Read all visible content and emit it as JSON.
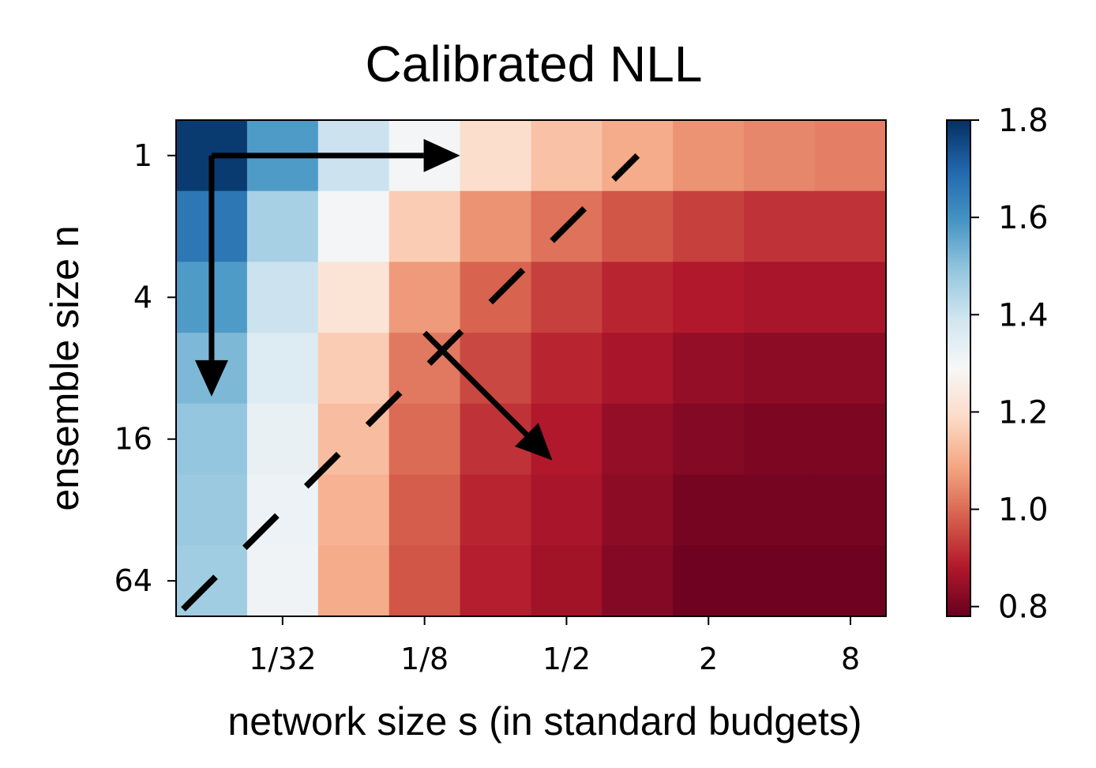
{
  "chart_data": {
    "type": "heatmap",
    "title": "Calibrated NLL",
    "xlabel": "network size s (in standard budgets)",
    "ylabel": "ensemble size n",
    "x_tick_labels": [
      "1/32",
      "1/8",
      "1/2",
      "2",
      "8"
    ],
    "x_ticks_at_column": [
      1.5,
      3.5,
      5.5,
      7.5,
      9.5
    ],
    "y_tick_labels": [
      "1",
      "4",
      "16",
      "64"
    ],
    "y_ticks_at_row": [
      0.5,
      2.5,
      4.5,
      6.5
    ],
    "colormap": "RdBu",
    "clim": [
      0.78,
      1.8
    ],
    "colorbar_tick_labels": [
      "0.8",
      "1.0",
      "1.2",
      "1.4",
      "1.6",
      "1.8"
    ],
    "colorbar_ticks": [
      0.8,
      1.0,
      1.2,
      1.4,
      1.6,
      1.8
    ],
    "values": [
      [
        1.78,
        1.58,
        1.4,
        1.3,
        1.2,
        1.14,
        1.1,
        1.06,
        1.04,
        1.03
      ],
      [
        1.66,
        1.46,
        1.3,
        1.16,
        1.06,
        1.01,
        0.97,
        0.94,
        0.92,
        0.92
      ],
      [
        1.58,
        1.4,
        1.22,
        1.07,
        0.99,
        0.94,
        0.9,
        0.88,
        0.87,
        0.87
      ],
      [
        1.52,
        1.36,
        1.16,
        1.02,
        0.95,
        0.9,
        0.87,
        0.84,
        0.83,
        0.83
      ],
      [
        1.49,
        1.33,
        1.13,
        1.0,
        0.92,
        0.88,
        0.84,
        0.82,
        0.81,
        0.81
      ],
      [
        1.48,
        1.32,
        1.11,
        0.98,
        0.9,
        0.87,
        0.83,
        0.8,
        0.8,
        0.8
      ],
      [
        1.47,
        1.31,
        1.1,
        0.97,
        0.89,
        0.86,
        0.82,
        0.79,
        0.79,
        0.79
      ]
    ],
    "annotations": [
      {
        "type": "arrow",
        "from": [
          0.5,
          0.5
        ],
        "to": [
          4.0,
          0.5
        ]
      },
      {
        "type": "arrow",
        "from": [
          0.5,
          0.5
        ],
        "to": [
          0.5,
          3.9
        ]
      },
      {
        "type": "arrow",
        "from": [
          3.5,
          3.0
        ],
        "to": [
          5.3,
          4.8
        ]
      },
      {
        "type": "dashed-line",
        "from": [
          0.1,
          6.9
        ],
        "to": [
          6.5,
          0.5
        ]
      }
    ]
  }
}
